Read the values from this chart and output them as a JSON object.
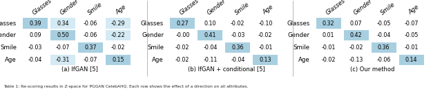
{
  "tables": [
    {
      "title": "(a) IfGAN [5]",
      "data": [
        [
          0.39,
          0.34,
          -0.06,
          -0.29
        ],
        [
          0.09,
          0.5,
          -0.06,
          -0.22
        ],
        [
          -0.03,
          -0.07,
          0.37,
          -0.02
        ],
        [
          -0.04,
          -0.31,
          -0.07,
          0.15
        ]
      ],
      "highlights": [
        [
          true,
          true,
          false,
          true
        ],
        [
          false,
          true,
          false,
          true
        ],
        [
          false,
          false,
          true,
          false
        ],
        [
          false,
          true,
          false,
          true
        ]
      ]
    },
    {
      "title": "(b) IfGAN + conditional [5]",
      "data": [
        [
          0.27,
          0.1,
          -0.02,
          -0.1
        ],
        [
          -0.0,
          0.41,
          -0.03,
          -0.02
        ],
        [
          -0.02,
          -0.04,
          0.36,
          -0.01
        ],
        [
          -0.02,
          -0.11,
          -0.04,
          0.13
        ]
      ],
      "highlights": [
        [
          true,
          false,
          false,
          false
        ],
        [
          false,
          true,
          false,
          false
        ],
        [
          false,
          false,
          true,
          false
        ],
        [
          false,
          false,
          false,
          true
        ]
      ]
    },
    {
      "title": "(c) Our method",
      "data": [
        [
          0.32,
          0.07,
          -0.05,
          -0.07
        ],
        [
          0.01,
          0.42,
          -0.04,
          -0.05
        ],
        [
          -0.01,
          -0.02,
          0.36,
          -0.01
        ],
        [
          -0.02,
          -0.13,
          -0.06,
          0.14
        ]
      ],
      "highlights": [
        [
          true,
          false,
          false,
          false
        ],
        [
          false,
          true,
          false,
          false
        ],
        [
          false,
          false,
          true,
          false
        ],
        [
          false,
          false,
          false,
          true
        ]
      ]
    }
  ],
  "col_labels": [
    "Glasses",
    "Gender",
    "Smile",
    "Age"
  ],
  "row_labels": [
    "Glasses",
    "Gender",
    "Smile",
    "Age"
  ],
  "highlight_dark": "#a8cfe0",
  "highlight_light": "#d4eaf4",
  "bg_color": "#f5f5f5",
  "cell_bg": "#f0f0f0",
  "caption": "Table 1: Re-scoring results in Z-space for PGGAN CelebAHQ. Each row shows the effect of a direction on all attributes.",
  "title_fontsize": 6.0,
  "cell_fontsize": 5.8,
  "label_fontsize": 6.2,
  "header_fontsize": 6.2
}
